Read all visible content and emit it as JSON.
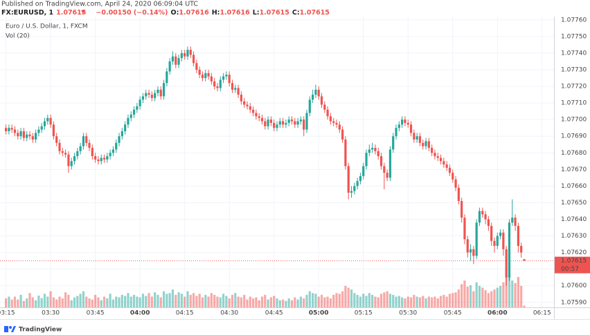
{
  "header": {
    "published": "Published on TradingView.com, April 24, 2020 06:09:04 UTC",
    "symbol": "FX:EURUSD, 1",
    "change": "−0.00150 (−0.14%)",
    "o_label": "O:",
    "h_label": "H:",
    "l_label": "L:",
    "c_label": "C:"
  },
  "chart_data": {
    "type": "candlestick",
    "title": "Euro / U.S. Dollar, 1, FXCM",
    "volume_label": "Vol (20)",
    "countdown": "00:57",
    "up_color": "#26a69a",
    "down_color": "#ef5350",
    "grid": true,
    "xlim": [
      "03:13",
      "06:19"
    ],
    "xticks": [
      "03:15",
      "03:30",
      "03:45",
      "04:00",
      "04:15",
      "04:30",
      "04:45",
      "05:00",
      "05:15",
      "05:30",
      "05:45",
      "06:00",
      "06:15"
    ],
    "ylim": [
      1.07587,
      1.07762
    ],
    "yticks": [
      {
        "value": 1.0776,
        "label": "1.07760"
      },
      {
        "value": 1.0775,
        "label": "1.07750"
      },
      {
        "value": 1.0774,
        "label": "1.07740"
      },
      {
        "value": 1.0773,
        "label": "1.07730"
      },
      {
        "value": 1.0772,
        "label": "1.07720"
      },
      {
        "value": 1.0771,
        "label": "1.07710"
      },
      {
        "value": 1.077,
        "label": "1.07700"
      },
      {
        "value": 1.0769,
        "label": "1.07690"
      },
      {
        "value": 1.0768,
        "label": "1.07680"
      },
      {
        "value": 1.0767,
        "label": "1.07670"
      },
      {
        "value": 1.0766,
        "label": "1.07660"
      },
      {
        "value": 1.0765,
        "label": "1.07650"
      },
      {
        "value": 1.0764,
        "label": "1.07640"
      },
      {
        "value": 1.0763,
        "label": "1.07630"
      },
      {
        "value": 1.0762,
        "label": "1.07620"
      },
      {
        "value": 1.0761,
        "label": "1.07610"
      },
      {
        "value": 1.076,
        "label": "1.07600"
      },
      {
        "value": 1.0759,
        "label": "1.07590"
      }
    ],
    "x": [
      "03:15",
      "03:16",
      "03:17",
      "03:18",
      "03:19",
      "03:20",
      "03:21",
      "03:22",
      "03:23",
      "03:24",
      "03:25",
      "03:26",
      "03:27",
      "03:28",
      "03:29",
      "03:30",
      "03:31",
      "03:32",
      "03:33",
      "03:34",
      "03:35",
      "03:36",
      "03:37",
      "03:38",
      "03:39",
      "03:40",
      "03:41",
      "03:42",
      "03:43",
      "03:44",
      "03:45",
      "03:46",
      "03:47",
      "03:48",
      "03:49",
      "03:50",
      "03:51",
      "03:52",
      "03:53",
      "03:54",
      "03:55",
      "03:56",
      "03:57",
      "03:58",
      "03:59",
      "04:00",
      "04:01",
      "04:02",
      "04:03",
      "04:04",
      "04:05",
      "04:06",
      "04:07",
      "04:08",
      "04:09",
      "04:10",
      "04:11",
      "04:12",
      "04:13",
      "04:14",
      "04:15",
      "04:16",
      "04:17",
      "04:18",
      "04:19",
      "04:20",
      "04:21",
      "04:22",
      "04:23",
      "04:24",
      "04:25",
      "04:26",
      "04:27",
      "04:28",
      "04:29",
      "04:30",
      "04:31",
      "04:32",
      "04:33",
      "04:34",
      "04:35",
      "04:36",
      "04:37",
      "04:38",
      "04:39",
      "04:40",
      "04:41",
      "04:42",
      "04:43",
      "04:44",
      "04:45",
      "04:46",
      "04:47",
      "04:48",
      "04:49",
      "04:50",
      "04:51",
      "04:52",
      "04:53",
      "04:54",
      "04:55",
      "04:56",
      "04:57",
      "04:58",
      "04:59",
      "05:00",
      "05:01",
      "05:02",
      "05:03",
      "05:04",
      "05:05",
      "05:06",
      "05:07",
      "05:08",
      "05:09",
      "05:10",
      "05:11",
      "05:12",
      "05:13",
      "05:14",
      "05:15",
      "05:16",
      "05:17",
      "05:18",
      "05:19",
      "05:20",
      "05:21",
      "05:22",
      "05:23",
      "05:24",
      "05:25",
      "05:26",
      "05:27",
      "05:28",
      "05:29",
      "05:30",
      "05:31",
      "05:32",
      "05:33",
      "05:34",
      "05:35",
      "05:36",
      "05:37",
      "05:38",
      "05:39",
      "05:40",
      "05:41",
      "05:42",
      "05:43",
      "05:44",
      "05:45",
      "05:46",
      "05:47",
      "05:48",
      "05:49",
      "05:50",
      "05:51",
      "05:52",
      "05:53",
      "05:54",
      "05:55",
      "05:56",
      "05:57",
      "05:58",
      "05:59",
      "06:00",
      "06:01",
      "06:02",
      "06:03",
      "06:04",
      "06:05",
      "06:06",
      "06:07",
      "06:08",
      "06:09"
    ],
    "open": [
      1.07695,
      1.07693,
      1.07695,
      1.07694,
      1.07692,
      1.0769,
      1.07693,
      1.07689,
      1.07691,
      1.0769,
      1.07688,
      1.07692,
      1.07694,
      1.07696,
      1.07699,
      1.07701,
      1.07697,
      1.0769,
      1.07686,
      1.07681,
      1.0768,
      1.07679,
      1.07672,
      1.07675,
      1.07678,
      1.07681,
      1.07684,
      1.0769,
      1.07686,
      1.07683,
      1.07678,
      1.07676,
      1.07675,
      1.07677,
      1.07676,
      1.07678,
      1.0768,
      1.07682,
      1.07686,
      1.0769,
      1.07693,
      1.07697,
      1.07701,
      1.07703,
      1.07706,
      1.07708,
      1.07712,
      1.07714,
      1.07716,
      1.07715,
      1.07713,
      1.07716,
      1.07718,
      1.07714,
      1.07722,
      1.07729,
      1.07735,
      1.07738,
      1.07733,
      1.07737,
      1.0774,
      1.07738,
      1.07742,
      1.07739,
      1.07734,
      1.0773,
      1.07727,
      1.07725,
      1.07728,
      1.07726,
      1.07723,
      1.0772,
      1.07719,
      1.07724,
      1.07726,
      1.07727,
      1.07722,
      1.07718,
      1.07719,
      1.07715,
      1.07711,
      1.07709,
      1.07708,
      1.07706,
      1.07704,
      1.07702,
      1.07701,
      1.07699,
      1.07696,
      1.077,
      1.07698,
      1.07695,
      1.07697,
      1.07699,
      1.07697,
      1.07698,
      1.077,
      1.07699,
      1.07697,
      1.07699,
      1.077,
      1.07694,
      1.07704,
      1.07712,
      1.07715,
      1.07718,
      1.07714,
      1.07709,
      1.07706,
      1.07702,
      1.07699,
      1.07698,
      1.07697,
      1.07694,
      1.07688,
      1.07672,
      1.07656,
      1.07657,
      1.0766,
      1.07663,
      1.07666,
      1.07672,
      1.0768,
      1.07682,
      1.07683,
      1.07681,
      1.07678,
      1.07672,
      1.07668,
      1.07665,
      1.07682,
      1.0769,
      1.07695,
      1.07697,
      1.077,
      1.07698,
      1.07697,
      1.07692,
      1.07688,
      1.0769,
      1.07686,
      1.07684,
      1.07687,
      1.07683,
      1.0768,
      1.07678,
      1.07677,
      1.07675,
      1.07673,
      1.07671,
      1.07668,
      1.07664,
      1.07659,
      1.07651,
      1.07641,
      1.07628,
      1.0762,
      1.07622,
      1.07618,
      1.07638,
      1.07645,
      1.07643,
      1.0764,
      1.07636,
      1.07627,
      1.07624,
      1.0763,
      1.07632,
      1.07622,
      1.07605,
      1.07638,
      1.07641,
      1.07636,
      1.07624,
      1.07616
    ],
    "high": [
      1.07697,
      1.07697,
      1.07697,
      1.07696,
      1.07694,
      1.07695,
      1.07695,
      1.07693,
      1.07693,
      1.07692,
      1.07694,
      1.07696,
      1.07698,
      1.07701,
      1.07703,
      1.07703,
      1.07699,
      1.07692,
      1.07688,
      1.07683,
      1.07682,
      1.07681,
      1.07677,
      1.0768,
      1.07683,
      1.07686,
      1.07692,
      1.07692,
      1.07688,
      1.07685,
      1.0768,
      1.07678,
      1.07679,
      1.07679,
      1.0768,
      1.07682,
      1.07684,
      1.07688,
      1.07692,
      1.07695,
      1.07699,
      1.07703,
      1.07705,
      1.07708,
      1.0771,
      1.07714,
      1.07716,
      1.07718,
      1.07718,
      1.07717,
      1.07718,
      1.0772,
      1.0772,
      1.07724,
      1.07731,
      1.07737,
      1.07741,
      1.0774,
      1.07739,
      1.07742,
      1.07742,
      1.07744,
      1.07744,
      1.07741,
      1.07736,
      1.07732,
      1.07729,
      1.0773,
      1.0773,
      1.07728,
      1.07725,
      1.07722,
      1.07726,
      1.07728,
      1.07729,
      1.07729,
      1.07724,
      1.07721,
      1.07721,
      1.07717,
      1.07713,
      1.07711,
      1.0771,
      1.07708,
      1.07706,
      1.07704,
      1.07703,
      1.07701,
      1.07702,
      1.07702,
      1.077,
      1.07699,
      1.07701,
      1.07701,
      1.077,
      1.07702,
      1.07702,
      1.07701,
      1.07701,
      1.07702,
      1.07702,
      1.07706,
      1.07714,
      1.07718,
      1.07721,
      1.0772,
      1.07716,
      1.07711,
      1.07708,
      1.07704,
      1.07701,
      1.077,
      1.07699,
      1.07696,
      1.0769,
      1.07674,
      1.0766,
      1.07662,
      1.07665,
      1.07668,
      1.07674,
      1.07682,
      1.07685,
      1.07686,
      1.07685,
      1.07683,
      1.0768,
      1.07674,
      1.0767,
      1.07684,
      1.07692,
      1.07697,
      1.07699,
      1.07702,
      1.07702,
      1.077,
      1.07699,
      1.07694,
      1.07692,
      1.07692,
      1.07688,
      1.07689,
      1.07689,
      1.07685,
      1.07682,
      1.0768,
      1.07679,
      1.07677,
      1.07675,
      1.07673,
      1.0767,
      1.07666,
      1.07661,
      1.07653,
      1.07643,
      1.0763,
      1.07625,
      1.07624,
      1.0764,
      1.07647,
      1.07647,
      1.07645,
      1.07642,
      1.07638,
      1.07629,
      1.07632,
      1.07634,
      1.07634,
      1.07624,
      1.0764,
      1.07652,
      1.07643,
      1.07638,
      1.07626,
      1.07616
    ],
    "low": [
      1.07691,
      1.07691,
      1.07692,
      1.0769,
      1.07688,
      1.07688,
      1.07687,
      1.07687,
      1.07688,
      1.07686,
      1.07686,
      1.0769,
      1.07692,
      1.07694,
      1.07697,
      1.07695,
      1.07688,
      1.07684,
      1.07679,
      1.07678,
      1.07677,
      1.07668,
      1.0767,
      1.07673,
      1.07676,
      1.07679,
      1.07682,
      1.07684,
      1.07681,
      1.07676,
      1.07674,
      1.07673,
      1.07673,
      1.07674,
      1.07674,
      1.07676,
      1.07678,
      1.0768,
      1.07684,
      1.07688,
      1.07691,
      1.07695,
      1.07699,
      1.07701,
      1.07704,
      1.07706,
      1.0771,
      1.07712,
      1.07713,
      1.07711,
      1.07711,
      1.07714,
      1.07712,
      1.07712,
      1.0772,
      1.07727,
      1.07733,
      1.07731,
      1.07731,
      1.07735,
      1.07736,
      1.07736,
      1.07737,
      1.07732,
      1.07728,
      1.07725,
      1.07723,
      1.07723,
      1.07724,
      1.07721,
      1.07718,
      1.07717,
      1.07717,
      1.07722,
      1.07724,
      1.0772,
      1.07716,
      1.07716,
      1.07713,
      1.07709,
      1.07707,
      1.07706,
      1.07704,
      1.07702,
      1.077,
      1.07699,
      1.07697,
      1.07694,
      1.07694,
      1.07696,
      1.07693,
      1.07693,
      1.07695,
      1.07695,
      1.07695,
      1.07696,
      1.07697,
      1.07695,
      1.07695,
      1.07697,
      1.0769,
      1.07692,
      1.07702,
      1.0771,
      1.07713,
      1.07712,
      1.07707,
      1.07704,
      1.077,
      1.07697,
      1.07696,
      1.07695,
      1.07692,
      1.07686,
      1.0767,
      1.07652,
      1.07653,
      1.07655,
      1.07658,
      1.07661,
      1.07664,
      1.0767,
      1.07678,
      1.0768,
      1.07679,
      1.07676,
      1.0767,
      1.07658,
      1.07663,
      1.07663,
      1.0768,
      1.07688,
      1.07693,
      1.07695,
      1.07696,
      1.07695,
      1.0769,
      1.07686,
      1.07686,
      1.07684,
      1.07682,
      1.07682,
      1.07681,
      1.07678,
      1.07676,
      1.07675,
      1.07673,
      1.07671,
      1.07669,
      1.07666,
      1.07662,
      1.07657,
      1.07649,
      1.07638,
      1.07625,
      1.07617,
      1.07615,
      1.07613,
      1.07616,
      1.07636,
      1.07641,
      1.07637,
      1.07633,
      1.07624,
      1.0762,
      1.07622,
      1.07628,
      1.07618,
      1.076,
      1.07603,
      1.07636,
      1.07633,
      1.0762,
      1.07617,
      1.07615
    ],
    "close": [
      1.07693,
      1.07695,
      1.07694,
      1.07692,
      1.0769,
      1.07693,
      1.07689,
      1.07691,
      1.0769,
      1.07688,
      1.07692,
      1.07694,
      1.07696,
      1.07699,
      1.07701,
      1.07697,
      1.0769,
      1.07686,
      1.07681,
      1.0768,
      1.07679,
      1.07672,
      1.07675,
      1.07678,
      1.07681,
      1.07684,
      1.0769,
      1.07686,
      1.07683,
      1.07678,
      1.07676,
      1.07675,
      1.07677,
      1.07676,
      1.07678,
      1.0768,
      1.07682,
      1.07686,
      1.0769,
      1.07693,
      1.07697,
      1.07701,
      1.07703,
      1.07706,
      1.07708,
      1.07712,
      1.07714,
      1.07716,
      1.07715,
      1.07713,
      1.07716,
      1.07718,
      1.07714,
      1.07722,
      1.07729,
      1.07735,
      1.07738,
      1.07733,
      1.07737,
      1.0774,
      1.07738,
      1.07742,
      1.07739,
      1.07734,
      1.0773,
      1.07727,
      1.07725,
      1.07728,
      1.07726,
      1.07723,
      1.0772,
      1.07719,
      1.07724,
      1.07726,
      1.07727,
      1.07722,
      1.07718,
      1.07719,
      1.07715,
      1.07711,
      1.07709,
      1.07708,
      1.07706,
      1.07704,
      1.07702,
      1.07701,
      1.07699,
      1.07696,
      1.077,
      1.07698,
      1.07695,
      1.07697,
      1.07699,
      1.07697,
      1.07698,
      1.077,
      1.07699,
      1.07697,
      1.07699,
      1.077,
      1.07694,
      1.07704,
      1.07712,
      1.07715,
      1.07718,
      1.07714,
      1.07709,
      1.07706,
      1.07702,
      1.07699,
      1.07698,
      1.07697,
      1.07694,
      1.07688,
      1.07672,
      1.07656,
      1.07657,
      1.0766,
      1.07663,
      1.07666,
      1.07672,
      1.0768,
      1.07682,
      1.07683,
      1.07681,
      1.07678,
      1.07672,
      1.07668,
      1.07665,
      1.07682,
      1.0769,
      1.07695,
      1.07697,
      1.077,
      1.07698,
      1.07697,
      1.07692,
      1.07688,
      1.0769,
      1.07686,
      1.07684,
      1.07687,
      1.07683,
      1.0768,
      1.07678,
      1.07677,
      1.07675,
      1.07673,
      1.07671,
      1.07668,
      1.07664,
      1.07659,
      1.07651,
      1.07641,
      1.07628,
      1.0762,
      1.07622,
      1.07618,
      1.07638,
      1.07645,
      1.07643,
      1.0764,
      1.07636,
      1.07627,
      1.07624,
      1.0763,
      1.07632,
      1.07622,
      1.07605,
      1.07638,
      1.07641,
      1.07636,
      1.07624,
      1.0762,
      1.07615
    ],
    "volume": [
      25,
      30,
      22,
      30,
      22,
      35,
      18,
      25,
      40,
      28,
      20,
      33,
      26,
      38,
      30,
      45,
      28,
      22,
      30,
      25,
      42,
      35,
      20,
      28,
      32,
      38,
      45,
      30,
      25,
      22,
      35,
      28,
      20,
      30,
      25,
      38,
      22,
      30,
      28,
      35,
      32,
      40,
      30,
      35,
      30,
      28,
      38,
      32,
      40,
      30,
      42,
      35,
      28,
      45,
      38,
      40,
      50,
      35,
      42,
      38,
      30,
      45,
      35,
      40,
      32,
      38,
      28,
      35,
      30,
      40,
      35,
      30,
      28,
      38,
      32,
      25,
      35,
      40,
      30,
      28,
      35,
      22,
      30,
      25,
      28,
      20,
      30,
      35,
      22,
      28,
      32,
      25,
      20,
      22,
      18,
      25,
      20,
      28,
      22,
      30,
      25,
      35,
      45,
      40,
      38,
      30,
      35,
      28,
      30,
      25,
      35,
      40,
      38,
      45,
      60,
      55,
      50,
      40,
      35,
      30,
      38,
      32,
      40,
      35,
      30,
      28,
      38,
      42,
      45,
      38,
      35,
      30,
      32,
      28,
      25,
      30,
      28,
      35,
      30,
      28,
      32,
      25,
      30,
      28,
      30,
      25,
      32,
      35,
      30,
      38,
      40,
      42,
      50,
      65,
      75,
      58,
      62,
      45,
      70,
      60,
      55,
      48,
      40,
      45,
      50,
      55,
      60,
      70,
      110,
      90,
      75,
      68,
      85,
      60,
      5
    ]
  },
  "footer": {
    "brand": "TradingView"
  }
}
